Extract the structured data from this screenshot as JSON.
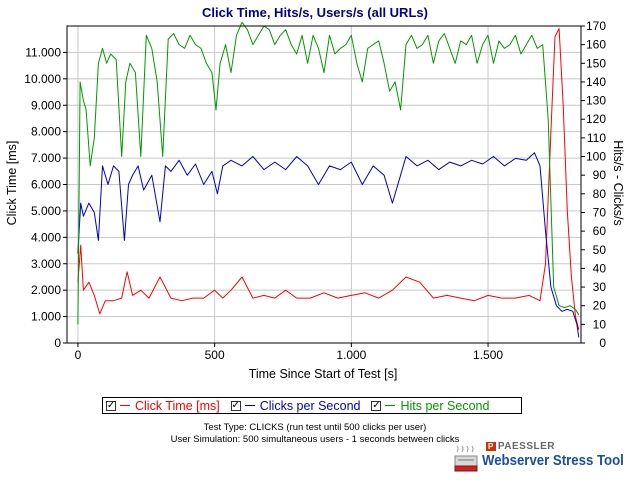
{
  "chart_data": {
    "type": "line",
    "title": "Click Time, Hits/s, Users/s (all URLs)",
    "xlabel": "Time Since Start of Test [s]",
    "ylabel_left": "Click Time [ms]",
    "ylabel_right": "Hits/s - Clicks/s",
    "xlim": [
      -40,
      1840
    ],
    "ylim_left": [
      0,
      12000
    ],
    "ylim_right": [
      0,
      170
    ],
    "x_ticks": [
      0,
      500,
      1000,
      1500
    ],
    "x_tick_labels": [
      "0",
      "500",
      "1.000",
      "1.500"
    ],
    "y_left_ticks": [
      0,
      1000,
      2000,
      3000,
      4000,
      5000,
      6000,
      7000,
      8000,
      9000,
      10000,
      11000
    ],
    "y_left_tick_labels": [
      "0",
      "1.000",
      "2.000",
      "3.000",
      "4.000",
      "5.000",
      "6.000",
      "7.000",
      "8.000",
      "9.000",
      "10.000",
      "11.000"
    ],
    "y_right_ticks": [
      0,
      10,
      20,
      30,
      40,
      50,
      60,
      70,
      80,
      90,
      100,
      110,
      120,
      130,
      140,
      150,
      160,
      170
    ],
    "grid": true,
    "legend_position": "bottom",
    "series": [
      {
        "name": "Click Time [ms]",
        "axis": "left",
        "color": "#ff0000",
        "x": [
          0,
          10,
          20,
          40,
          60,
          80,
          100,
          130,
          160,
          180,
          200,
          230,
          260,
          300,
          340,
          380,
          420,
          460,
          500,
          530,
          560,
          600,
          640,
          680,
          720,
          760,
          800,
          850,
          900,
          950,
          1000,
          1050,
          1100,
          1150,
          1200,
          1250,
          1300,
          1350,
          1400,
          1450,
          1500,
          1550,
          1600,
          1650,
          1690,
          1710,
          1730,
          1745,
          1760,
          1775,
          1790,
          1805,
          1820,
          1832
        ],
        "y": [
          2300,
          3700,
          2000,
          2300,
          1800,
          1100,
          1600,
          1600,
          1700,
          2700,
          1800,
          2000,
          1700,
          2500,
          1700,
          1600,
          1700,
          1700,
          2000,
          1700,
          2000,
          2500,
          1700,
          1800,
          1700,
          2000,
          1700,
          1700,
          1900,
          1700,
          1800,
          1900,
          1700,
          2000,
          2500,
          2300,
          1700,
          1800,
          1700,
          1600,
          1800,
          1700,
          1700,
          1800,
          1600,
          3000,
          8000,
          11600,
          11900,
          9000,
          5000,
          2500,
          1000,
          500
        ]
      },
      {
        "name": "Clicks per Second",
        "axis": "right",
        "color": "#0000cc",
        "x": [
          0,
          10,
          20,
          40,
          60,
          75,
          90,
          110,
          130,
          150,
          170,
          185,
          200,
          220,
          240,
          270,
          300,
          320,
          340,
          370,
          400,
          430,
          460,
          490,
          510,
          530,
          560,
          600,
          640,
          680,
          720,
          760,
          800,
          840,
          880,
          920,
          960,
          1000,
          1040,
          1080,
          1120,
          1150,
          1180,
          1200,
          1240,
          1280,
          1320,
          1360,
          1400,
          1440,
          1480,
          1520,
          1560,
          1600,
          1640,
          1670,
          1690,
          1710,
          1730,
          1750,
          1770,
          1790,
          1810,
          1825,
          1832
        ],
        "y": [
          48,
          75,
          68,
          75,
          70,
          55,
          95,
          85,
          95,
          92,
          55,
          85,
          90,
          95,
          82,
          90,
          65,
          95,
          92,
          98,
          90,
          96,
          85,
          92,
          80,
          95,
          98,
          95,
          100,
          93,
          97,
          93,
          100,
          95,
          85,
          95,
          93,
          97,
          85,
          95,
          90,
          75,
          90,
          100,
          95,
          98,
          93,
          97,
          95,
          98,
          96,
          100,
          95,
          99,
          98,
          102,
          95,
          60,
          30,
          20,
          17,
          18,
          17,
          10,
          3
        ]
      },
      {
        "name": "Hits per Second",
        "axis": "right",
        "color": "#009900",
        "x": [
          0,
          8,
          20,
          30,
          45,
          60,
          75,
          90,
          105,
          120,
          140,
          160,
          175,
          190,
          210,
          230,
          250,
          270,
          290,
          310,
          330,
          350,
          370,
          390,
          410,
          430,
          450,
          470,
          490,
          505,
          520,
          540,
          560,
          580,
          600,
          620,
          640,
          660,
          680,
          700,
          720,
          740,
          760,
          780,
          800,
          820,
          840,
          860,
          880,
          900,
          920,
          940,
          960,
          980,
          1000,
          1020,
          1040,
          1060,
          1080,
          1100,
          1120,
          1140,
          1160,
          1180,
          1200,
          1220,
          1240,
          1260,
          1280,
          1300,
          1320,
          1340,
          1360,
          1380,
          1400,
          1420,
          1440,
          1460,
          1480,
          1500,
          1520,
          1540,
          1560,
          1580,
          1600,
          1620,
          1640,
          1660,
          1680,
          1700,
          1720,
          1740,
          1760,
          1780,
          1800,
          1820,
          1832
        ],
        "y": [
          10,
          140,
          130,
          125,
          95,
          110,
          150,
          158,
          150,
          155,
          152,
          100,
          140,
          150,
          145,
          100,
          165,
          158,
          140,
          100,
          163,
          166,
          160,
          158,
          165,
          160,
          158,
          150,
          145,
          125,
          150,
          160,
          145,
          165,
          172,
          168,
          160,
          165,
          170,
          168,
          160,
          165,
          168,
          160,
          155,
          165,
          150,
          165,
          158,
          145,
          165,
          155,
          158,
          160,
          165,
          150,
          140,
          158,
          160,
          162,
          150,
          135,
          140,
          125,
          160,
          165,
          158,
          160,
          165,
          150,
          162,
          166,
          158,
          150,
          162,
          160,
          165,
          150,
          160,
          165,
          150,
          162,
          158,
          160,
          165,
          155,
          160,
          165,
          158,
          160,
          120,
          30,
          20,
          19,
          20,
          18,
          15
        ]
      }
    ]
  },
  "legend": {
    "items": [
      {
        "label": "Click Time [ms]",
        "color": "#ff0000",
        "checked": "✓"
      },
      {
        "label": "Clicks per Second",
        "color": "#0000cc",
        "checked": "✓"
      },
      {
        "label": "Hits per Second",
        "color": "#009900",
        "checked": "✓"
      }
    ]
  },
  "info": {
    "line1": "Test Type: CLICKS (run test until 500 clicks per user)",
    "line2": "User Simulation: 500 simultaneous users - 1 seconds between clicks"
  },
  "branding": {
    "company": "PAESSLER",
    "company_tag": "P",
    "product": "Webserver Stress Tool"
  }
}
